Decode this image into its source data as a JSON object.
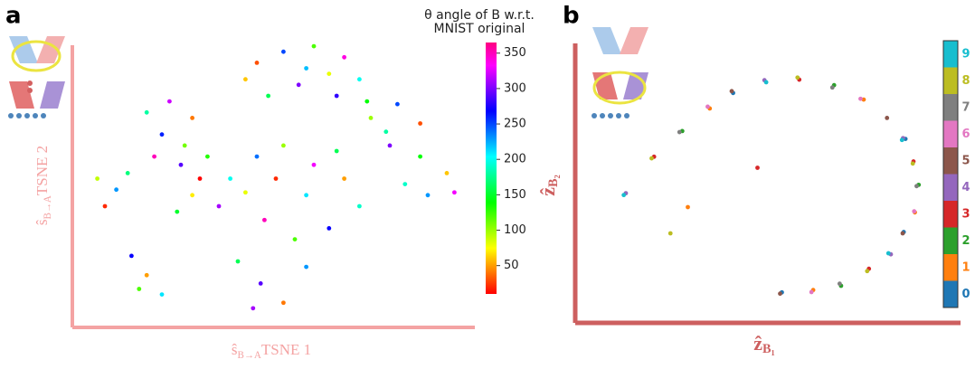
{
  "chart_data": [
    {
      "type": "scatter",
      "panel": "a",
      "colorbar_title": [
        "θ angle of B w.r.t.",
        "MNIST original"
      ],
      "xlabel_main": "ŝ",
      "xlabel_sub": "B→A",
      "xlabel_rest": "TSNE 1",
      "ylabel_main": "ŝ",
      "ylabel_sub": "B→A",
      "ylabel_rest": "TSNE 2",
      "axis_color": "#f4a3a3",
      "xlim": [
        0,
        100
      ],
      "ylim": [
        0,
        100
      ],
      "clim": [
        10,
        365
      ],
      "cticks": [
        50,
        100,
        150,
        200,
        250,
        300,
        350
      ],
      "x": [
        45,
        52,
        60,
        68,
        72,
        64,
        56,
        48,
        42,
        58,
        66,
        74,
        16,
        22,
        28,
        20,
        26,
        18,
        3,
        8,
        5,
        11,
        25,
        32,
        38,
        28,
        35,
        24,
        30,
        45,
        52,
        60,
        68,
        72,
        64,
        55,
        47,
        42,
        58,
        50,
        66,
        80,
        88,
        95,
        90,
        84,
        97,
        75,
        82,
        88,
        79,
        12,
        16,
        20,
        14,
        40,
        46,
        52,
        58,
        44
      ],
      "y": [
        92,
        96,
        98,
        94,
        86,
        88,
        84,
        80,
        86,
        90,
        80,
        78,
        74,
        78,
        72,
        66,
        62,
        58,
        50,
        46,
        40,
        52,
        55,
        58,
        50,
        44,
        40,
        38,
        50,
        58,
        62,
        55,
        50,
        40,
        32,
        28,
        35,
        45,
        44,
        50,
        60,
        62,
        58,
        52,
        44,
        48,
        45,
        72,
        77,
        70,
        67,
        22,
        15,
        8,
        10,
        20,
        12,
        5,
        18,
        3
      ],
      "c": [
        30,
        250,
        120,
        340,
        200,
        80,
        300,
        160,
        60,
        220,
        280,
        140,
        180,
        320,
        40,
        260,
        110,
        350,
        90,
        230,
        20,
        170,
        290,
        130,
        200,
        70,
        310,
        150,
        10,
        240,
        100,
        330,
        50,
        190,
        270,
        120,
        350,
        80,
        210,
        20,
        160,
        300,
        140,
        60,
        230,
        190,
        330,
        100,
        250,
        30,
        180,
        270,
        50,
        210,
        120,
        160,
        290,
        40,
        230,
        310
      ]
    },
    {
      "type": "scatter",
      "panel": "b",
      "xlabel_main": "ẑ",
      "xlabel_sub": "B₁",
      "ylabel_main": "ẑ",
      "ylabel_sub": "B₂",
      "axis_color": "#cd5f5f",
      "xlim": [
        0,
        100
      ],
      "ylim": [
        0,
        100
      ],
      "series": [
        {
          "name": "0",
          "color": "#1f77b4",
          "x": [
            57,
            92.5,
            92,
            43
          ],
          "y": [
            7.5,
            66,
            30.5,
            83.5
          ]
        },
        {
          "name": "1",
          "color": "#ff7f0e",
          "x": [
            66,
            80.5,
            95.2,
            36.3,
            30
          ],
          "y": [
            8.4,
            81,
            38,
            77.6,
            40
          ]
        },
        {
          "name": "2",
          "color": "#2ca02c",
          "x": [
            74,
            72,
            96.3,
            28.4
          ],
          "y": [
            10,
            86.5,
            48.5,
            69
          ]
        },
        {
          "name": "3",
          "color": "#d62728",
          "x": [
            82,
            62,
            94.8,
            20.3,
            50
          ],
          "y": [
            16.5,
            88.6,
            57.4,
            59.2,
            55
          ]
        },
        {
          "name": "4",
          "color": "#9467bd",
          "x": [
            88.3,
            52,
            91.8,
            12.2
          ],
          "y": [
            22,
            88.4,
            66.3,
            45.3
          ]
        },
        {
          "name": "5",
          "color": "#8c564b",
          "x": [
            91.7,
            42.6,
            87.2,
            56.5
          ],
          "y": [
            30,
            84.2,
            74,
            7
          ]
        },
        {
          "name": "6",
          "color": "#e377c2",
          "x": [
            95,
            35.7,
            79.6,
            65.5
          ],
          "y": [
            38.4,
            78.3,
            81.3,
            7.6
          ]
        },
        {
          "name": "7",
          "color": "#7f7f7f",
          "x": [
            95.7,
            27.6,
            71.5,
            73.6
          ],
          "y": [
            48,
            68.6,
            85.6,
            10.8
          ]
        },
        {
          "name": "8",
          "color": "#bcbd22",
          "x": [
            94.6,
            19.6,
            61.5,
            81.5,
            25
          ],
          "y": [
            56.6,
            58.6,
            89.4,
            15.6,
            30
          ]
        },
        {
          "name": "9",
          "color": "#17becf",
          "x": [
            91.5,
            11.6,
            52.5,
            87.6
          ],
          "y": [
            65.6,
            44.6,
            87.6,
            22.4
          ]
        }
      ]
    }
  ]
}
